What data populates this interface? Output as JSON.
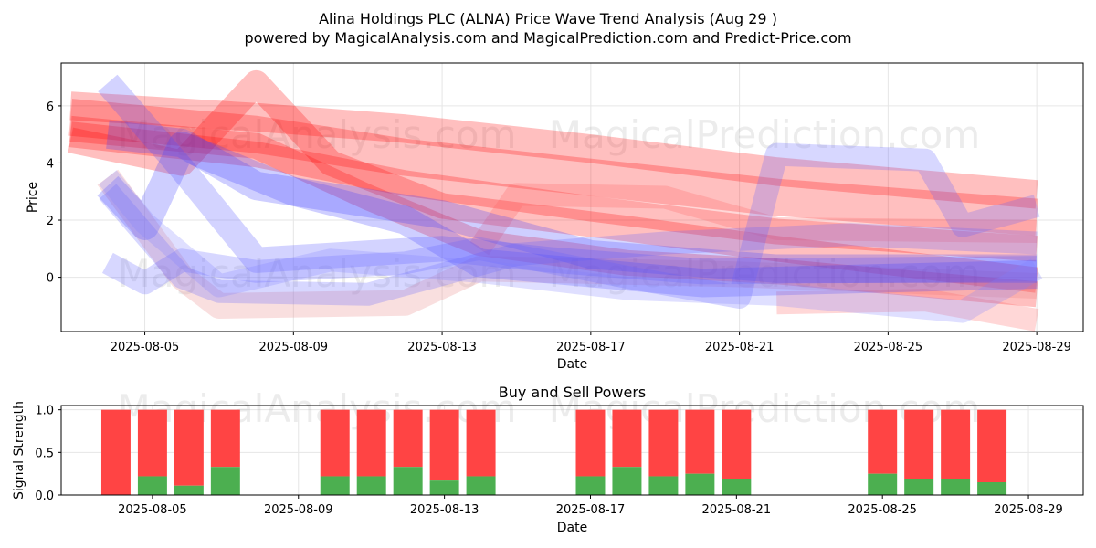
{
  "chart_data": [
    {
      "type": "area",
      "title": "Alina Holdings PLC (ALNA) Price Wave Trend Analysis (Aug 29 )",
      "subtitle": "powered by MagicalAnalysis.com and MagicalPrediction.com and Predict-Price.com",
      "xlabel": "Date",
      "ylabel": "Price",
      "x_ticks": [
        "2025-08-05",
        "2025-08-09",
        "2025-08-13",
        "2025-08-17",
        "2025-08-21",
        "2025-08-25",
        "2025-08-29"
      ],
      "y_ticks": [
        "0",
        "2",
        "4",
        "6"
      ],
      "xlim": [
        "2025-08-02 18:00",
        "2025-08-30 06:00"
      ],
      "ylim": [
        -1.9,
        7.5
      ],
      "grid": true,
      "watermarks": [
        "MagicalAnalysis.com",
        "MagicalPrediction.com"
      ],
      "series": [
        {
          "color": "#ff0000",
          "width": 1.3,
          "points": [
            [
              "2025-08-03",
              5.6
            ],
            [
              "2025-08-08",
              5.0
            ],
            [
              "2025-08-12",
              4.2
            ],
            [
              "2025-08-17",
              3.5
            ],
            [
              "2025-08-22",
              2.8
            ],
            [
              "2025-08-29",
              2.1
            ]
          ]
        },
        {
          "color": "#ff0000",
          "width": 1.0,
          "points": [
            [
              "2025-08-03",
              6.0
            ],
            [
              "2025-08-08",
              5.6
            ],
            [
              "2025-08-12",
              5.2
            ],
            [
              "2025-08-17",
              4.5
            ],
            [
              "2025-08-22",
              3.7
            ],
            [
              "2025-08-29",
              2.9
            ]
          ]
        },
        {
          "color": "#ff0000",
          "width": 0.9,
          "points": [
            [
              "2025-08-03",
              5.0
            ],
            [
              "2025-08-08",
              4.3
            ],
            [
              "2025-08-12",
              3.3
            ],
            [
              "2025-08-17",
              2.4
            ],
            [
              "2025-08-22",
              1.6
            ],
            [
              "2025-08-29",
              1.0
            ]
          ]
        },
        {
          "color": "#ff0000",
          "width": 0.9,
          "points": [
            [
              "2025-08-03",
              4.8
            ],
            [
              "2025-08-06",
              4.0
            ],
            [
              "2025-08-08",
              6.8
            ],
            [
              "2025-08-10",
              4.0
            ],
            [
              "2025-08-13",
              2.5
            ],
            [
              "2025-08-18",
              1.7
            ],
            [
              "2025-08-22",
              1.0
            ],
            [
              "2025-08-29",
              -0.1
            ]
          ]
        },
        {
          "color": "#ff0000",
          "width": 0.9,
          "points": [
            [
              "2025-08-03",
              5.2
            ],
            [
              "2025-08-08",
              4.6
            ],
            [
              "2025-08-11",
              2.8
            ],
            [
              "2025-08-14",
              1.2
            ],
            [
              "2025-08-18",
              0.5
            ],
            [
              "2025-08-22",
              0.2
            ],
            [
              "2025-08-29",
              -0.6
            ]
          ]
        },
        {
          "color": "#e88080",
          "width": 0.9,
          "points": [
            [
              "2025-08-04",
              3.5
            ],
            [
              "2025-08-06",
              0.0
            ],
            [
              "2025-08-07",
              -1.0
            ],
            [
              "2025-08-12",
              -0.9
            ],
            [
              "2025-08-14",
              0.3
            ],
            [
              "2025-08-21",
              0.1
            ],
            [
              "2025-08-29",
              -0.3
            ]
          ]
        },
        {
          "color": "#ff6060",
          "width": 0.8,
          "points": [
            [
              "2025-08-14",
              1.0
            ],
            [
              "2025-08-15",
              2.9
            ],
            [
              "2025-08-19",
              2.8
            ],
            [
              "2025-08-22",
              1.7
            ],
            [
              "2025-08-29",
              1.6
            ]
          ]
        },
        {
          "color": "#ff6060",
          "width": 0.8,
          "points": [
            [
              "2025-08-22",
              -0.9
            ],
            [
              "2025-08-26",
              -0.8
            ],
            [
              "2025-08-29",
              -1.5
            ]
          ]
        },
        {
          "color": "#3a3aff",
          "width": 1.0,
          "points": [
            [
              "2025-08-04",
              5.0
            ],
            [
              "2025-08-06",
              4.7
            ],
            [
              "2025-08-08",
              3.2
            ],
            [
              "2025-08-13",
              2.2
            ],
            [
              "2025-08-17",
              0.8
            ],
            [
              "2025-08-22",
              0.3
            ],
            [
              "2025-08-29",
              0.3
            ]
          ]
        },
        {
          "color": "#3a3aff",
          "width": 1.0,
          "points": [
            [
              "2025-08-04",
              3.2
            ],
            [
              "2025-08-05",
              1.8
            ],
            [
              "2025-08-06",
              4.6
            ],
            [
              "2025-08-09",
              3.0
            ],
            [
              "2025-08-12",
              2.0
            ],
            [
              "2025-08-14",
              0.5
            ],
            [
              "2025-08-20",
              -0.2
            ],
            [
              "2025-08-29",
              0.1
            ]
          ]
        },
        {
          "color": "#5050ff",
          "width": 0.9,
          "points": [
            [
              "2025-08-04",
              6.8
            ],
            [
              "2025-08-06",
              3.8
            ],
            [
              "2025-08-08",
              0.6
            ],
            [
              "2025-08-13",
              1.0
            ],
            [
              "2025-08-16",
              0.6
            ],
            [
              "2025-08-20",
              0.2
            ],
            [
              "2025-08-29",
              0.3
            ]
          ]
        },
        {
          "color": "#6060ff",
          "width": 0.8,
          "points": [
            [
              "2025-08-04",
              0.5
            ],
            [
              "2025-08-05",
              -0.2
            ],
            [
              "2025-08-06",
              0.6
            ],
            [
              "2025-08-08",
              0.2
            ],
            [
              "2025-08-12",
              0.5
            ],
            [
              "2025-08-14",
              1.0
            ],
            [
              "2025-08-18",
              0.0
            ],
            [
              "2025-08-21",
              -0.7
            ],
            [
              "2025-08-22",
              4.3
            ],
            [
              "2025-08-26",
              4.1
            ],
            [
              "2025-08-27",
              1.8
            ],
            [
              "2025-08-29",
              2.5
            ]
          ]
        },
        {
          "color": "#6060ff",
          "width": 0.8,
          "points": [
            [
              "2025-08-04",
              3.0
            ],
            [
              "2025-08-06",
              0.0
            ],
            [
              "2025-08-07",
              -0.5
            ],
            [
              "2025-08-11",
              -0.6
            ],
            [
              "2025-08-15",
              0.8
            ],
            [
              "2025-08-19",
              1.2
            ],
            [
              "2025-08-24",
              1.5
            ],
            [
              "2025-08-29",
              1.2
            ]
          ]
        },
        {
          "color": "#8080ff",
          "width": 0.8,
          "points": [
            [
              "2025-08-04",
              3.5
            ],
            [
              "2025-08-05",
              1.9
            ],
            [
              "2025-08-07",
              -0.3
            ],
            [
              "2025-08-10",
              0.6
            ],
            [
              "2025-08-14",
              0.2
            ],
            [
              "2025-08-18",
              -0.4
            ],
            [
              "2025-08-22",
              -0.6
            ],
            [
              "2025-08-27",
              -1.2
            ],
            [
              "2025-08-29",
              0.3
            ]
          ]
        }
      ]
    },
    {
      "type": "bar",
      "title": "Buy and Sell Powers",
      "xlabel": "Date",
      "ylabel": "Signal Strength",
      "x_ticks": [
        "2025-08-05",
        "2025-08-09",
        "2025-08-13",
        "2025-08-17",
        "2025-08-21",
        "2025-08-25",
        "2025-08-29"
      ],
      "y_ticks": [
        "0.0",
        "0.5",
        "1.0"
      ],
      "xlim": [
        "2025-08-02 12:00",
        "2025-08-30 12:00"
      ],
      "ylim": [
        0,
        1.05
      ],
      "grid": true,
      "watermarks": [
        "MagicalAnalysis.com",
        "MagicalPrediction.com"
      ],
      "colors": {
        "buy": "#4caf50",
        "sell": "#ff4444"
      },
      "categories": [
        "2025-08-04",
        "2025-08-05",
        "2025-08-06",
        "2025-08-07",
        "2025-08-10",
        "2025-08-11",
        "2025-08-12",
        "2025-08-13",
        "2025-08-14",
        "2025-08-17",
        "2025-08-18",
        "2025-08-19",
        "2025-08-20",
        "2025-08-21",
        "2025-08-25",
        "2025-08-26",
        "2025-08-27",
        "2025-08-28"
      ],
      "buy": [
        0.0,
        0.22,
        0.11,
        0.33,
        0.22,
        0.22,
        0.33,
        0.17,
        0.22,
        0.22,
        0.33,
        0.22,
        0.25,
        0.19,
        0.25,
        0.19,
        0.19,
        0.15
      ]
    }
  ]
}
